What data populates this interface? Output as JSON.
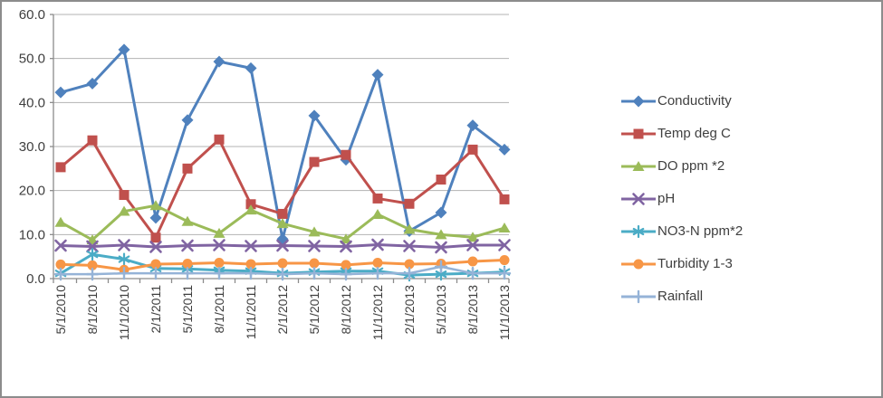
{
  "window": {
    "border_color": "#8C8C8C",
    "background_color": "#FFFFFF"
  },
  "chart_data": {
    "type": "line",
    "title": "",
    "categories": [
      "5/1/2010",
      "8/1/2010",
      "11/1/2010",
      "2/1/2011",
      "5/1/2011",
      "8/1/2011",
      "11/1/2011",
      "2/1/2012",
      "5/1/2012",
      "8/1/2012",
      "11/1/2012",
      "2/1/2013",
      "5/1/2013",
      "8/1/2013",
      "11/1/2013"
    ],
    "series": [
      {
        "name": "Conductivity",
        "marker": "diamond",
        "color": "#4F81BD",
        "values": [
          42.3,
          44.3,
          52.0,
          13.8,
          36.0,
          49.3,
          47.8,
          9.0,
          37.0,
          27.0,
          46.3,
          10.8,
          15.0,
          34.8,
          29.3
        ]
      },
      {
        "name": "Temp deg C",
        "marker": "square",
        "color": "#C0504D",
        "values": [
          25.3,
          31.4,
          19.0,
          9.3,
          25.0,
          31.6,
          16.9,
          14.7,
          26.5,
          28.1,
          18.2,
          17.0,
          22.5,
          29.3,
          18.0
        ]
      },
      {
        "name": "DO ppm *2",
        "marker": "triangle",
        "color": "#9BBB59",
        "values": [
          12.8,
          8.8,
          15.3,
          16.6,
          13.0,
          10.3,
          15.6,
          12.5,
          10.6,
          9.0,
          14.6,
          11.2,
          10.0,
          9.4,
          11.5
        ]
      },
      {
        "name": "pH",
        "marker": "x",
        "color": "#8064A2",
        "values": [
          7.5,
          7.3,
          7.6,
          7.2,
          7.5,
          7.6,
          7.4,
          7.5,
          7.4,
          7.3,
          7.7,
          7.4,
          7.1,
          7.6,
          7.6
        ]
      },
      {
        "name": "NO3-N ppm*2",
        "marker": "asterisk",
        "color": "#4BACC6",
        "values": [
          1.2,
          5.5,
          4.4,
          2.3,
          2.2,
          1.9,
          1.7,
          1.2,
          1.5,
          1.7,
          1.7,
          0.8,
          1.0,
          1.2,
          1.5
        ]
      },
      {
        "name": "Turbidity 1-3",
        "marker": "circle",
        "color": "#F79646",
        "values": [
          3.2,
          3.0,
          2.0,
          3.3,
          3.4,
          3.6,
          3.3,
          3.5,
          3.5,
          3.1,
          3.6,
          3.3,
          3.4,
          3.9,
          4.2
        ]
      },
      {
        "name": "Rainfall",
        "marker": "plus",
        "color": "#95B3D7",
        "values": [
          1.0,
          1.0,
          1.2,
          1.2,
          1.2,
          1.2,
          1.2,
          1.0,
          1.2,
          1.0,
          1.2,
          1.2,
          2.7,
          1.2,
          1.2
        ]
      }
    ],
    "y_axis": {
      "min": 0,
      "max": 60,
      "step": 10,
      "labels": [
        "0.0",
        "10.0",
        "20.0",
        "30.0",
        "40.0",
        "50.0",
        "60.0"
      ]
    },
    "x_axis": {
      "label_rotation_deg": 90
    },
    "legend_position": "right",
    "grid": true,
    "gridline_color": "#B3B3B3",
    "axis_color": "#8C8C8C",
    "text_color": "#3F3F3F"
  }
}
